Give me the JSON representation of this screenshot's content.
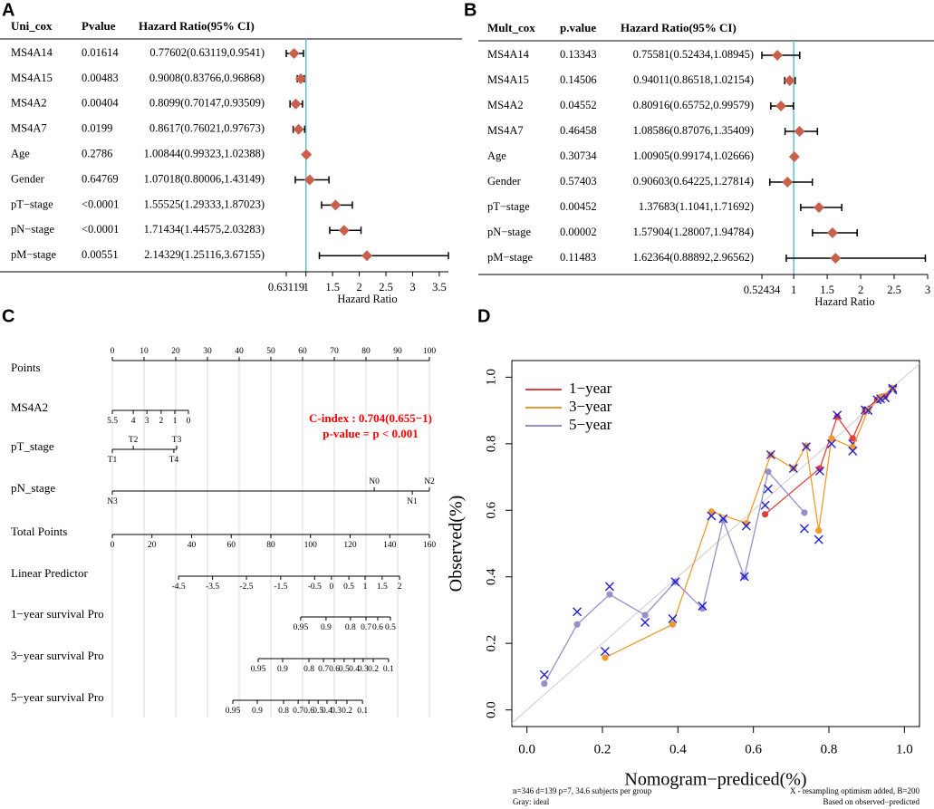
{
  "chart_data": [
    {
      "type": "forest",
      "panel": "A",
      "columns": [
        "Uni_cox",
        "Pvalue",
        "Hazard Ratio(95% CI)"
      ],
      "categories": [
        "MS4A14",
        "MS4A15",
        "MS4A2",
        "MS4A7",
        "Age",
        "Gender",
        "pT−stage",
        "pN−stage",
        "pM−stage"
      ],
      "pvalues": [
        "0.01614",
        "0.00483",
        "0.00404",
        "0.0199",
        "0.2786",
        "0.64769",
        "<0.0001",
        "<0.0001",
        "0.00551"
      ],
      "values": [
        0.77602,
        0.9008,
        0.8099,
        0.8617,
        1.00844,
        1.07018,
        1.55525,
        1.71434,
        2.14329
      ],
      "lower": [
        0.63119,
        0.83766,
        0.70147,
        0.76021,
        0.99323,
        0.80006,
        1.29333,
        1.44575,
        1.25116
      ],
      "upper": [
        0.9541,
        0.96868,
        0.93509,
        0.97673,
        1.02388,
        1.43149,
        1.87023,
        2.03283,
        3.67155
      ],
      "value_labels": [
        "0.77602(0.63119,0.9541)",
        "0.9008(0.83766,0.96868)",
        "0.8099(0.70147,0.93509)",
        "0.8617(0.76021,0.97673)",
        "1.00844(0.99323,1.02388)",
        "1.07018(0.80006,1.43149)",
        "1.55525(1.29333,1.87023)",
        "1.71434(1.44575,2.03283)",
        "2.14329(1.25116,3.67155)"
      ],
      "color": "#c9604c",
      "reference": 1,
      "reference_color": "#5cc3c8",
      "xlim": [
        0.63119,
        3.67155
      ],
      "xticks": [
        0.63119,
        1,
        1.5,
        2,
        2.5,
        3,
        3.5
      ],
      "xlabel": "Hazard Ratio"
    },
    {
      "type": "forest",
      "panel": "B",
      "columns": [
        "Mult_cox",
        "p.value",
        "Hazard Ratio(95% CI)"
      ],
      "categories": [
        "MS4A14",
        "MS4A15",
        "MS4A2",
        "MS4A7",
        "Age",
        "Gender",
        "pT−stage",
        "pN−stage",
        "pM−stage"
      ],
      "pvalues": [
        "0.13343",
        "0.14506",
        "0.04552",
        "0.46458",
        "0.30734",
        "0.57403",
        "0.00452",
        "0.00002",
        "0.11483"
      ],
      "values": [
        0.75581,
        0.94011,
        0.80916,
        1.08586,
        1.00905,
        0.90603,
        1.37683,
        1.57904,
        1.62364
      ],
      "lower": [
        0.52434,
        0.86518,
        0.65752,
        0.87076,
        0.99174,
        0.64225,
        1.1041,
        1.28007,
        0.88892
      ],
      "upper": [
        1.08945,
        1.02154,
        0.99579,
        1.35409,
        1.02666,
        1.27814,
        1.71692,
        1.94784,
        2.96562
      ],
      "value_labels": [
        "0.75581(0.52434,1.08945)",
        "0.94011(0.86518,1.02154)",
        "0.80916(0.65752,0.99579)",
        "1.08586(0.87076,1.35409)",
        "1.00905(0.99174,1.02666)",
        "0.90603(0.64225,1.27814)",
        "1.37683(1.1041,1.71692)",
        "1.57904(1.28007,1.94784)",
        "1.62364(0.88892,2.96562)"
      ],
      "color": "#c9604c",
      "reference": 1,
      "reference_color": "#5cc3c8",
      "xlim": [
        0.52434,
        3
      ],
      "xticks": [
        0.52434,
        1,
        1.5,
        2,
        2.5,
        3
      ],
      "xlabel": "Hazard Ratio"
    },
    {
      "type": "nomogram",
      "panel": "C",
      "xlim": [
        0,
        100
      ],
      "grid": true,
      "rows": [
        {
          "name": "Points",
          "ticks": [
            0,
            10,
            20,
            30,
            40,
            50,
            60,
            70,
            80,
            90,
            100
          ],
          "positions": [
            0,
            10,
            20,
            30,
            40,
            50,
            60,
            70,
            80,
            90,
            100
          ]
        },
        {
          "name": "MS4A2",
          "ticks": [
            5.5,
            4,
            3,
            2,
            1,
            0
          ],
          "positions": [
            0,
            6.6,
            10.9,
            15.4,
            19.7,
            24
          ]
        },
        {
          "name": "pT_stage",
          "ticks": [
            "T1",
            "T2",
            "T3",
            "T4"
          ],
          "positions": [
            0,
            6.6,
            20.3,
            19.4
          ],
          "above": [
            false,
            true,
            true,
            false
          ]
        },
        {
          "name": "pN_stage",
          "ticks": [
            "N3",
            "N0",
            "N1",
            "N2"
          ],
          "positions": [
            0,
            82.6,
            94.6,
            100
          ],
          "above": [
            false,
            true,
            false,
            true
          ]
        },
        {
          "name": "Total Points",
          "ticks": [
            0,
            20,
            40,
            60,
            80,
            100,
            120,
            140,
            160
          ],
          "positions": [
            0,
            12.5,
            25,
            37.5,
            50,
            62.5,
            75,
            87.5,
            100
          ]
        },
        {
          "name": "Linear Predictor",
          "ticks": [
            -4.5,
            -3.5,
            -2.5,
            -1.5,
            -0.5,
            0,
            0.5,
            1,
            1.5,
            2
          ],
          "positions": [
            20.9,
            31.6,
            42.3,
            53.1,
            63.8,
            69.1,
            74.6,
            79.7,
            85.1,
            90.6
          ]
        },
        {
          "name": "1−year survival Pro",
          "ticks": [
            0.95,
            0.9,
            0.8,
            0.7,
            0.6,
            0.5
          ],
          "positions": [
            59.4,
            67.4,
            75.1,
            80,
            83.7,
            87.7
          ]
        },
        {
          "name": "3−year survival Pro",
          "ticks": [
            0.95,
            0.9,
            0.8,
            0.7,
            0.6,
            0.5,
            0.4,
            0.3,
            0.2,
            0.1
          ],
          "positions": [
            46,
            53.7,
            62,
            66.6,
            70,
            73.1,
            76.3,
            79.1,
            82.3,
            87.1
          ]
        },
        {
          "name": "5−year survival Pro",
          "ticks": [
            0.95,
            0.9,
            0.8,
            0.7,
            0.6,
            0.5,
            0.4,
            0.3,
            0.2,
            0.1
          ],
          "positions": [
            38,
            45.7,
            54,
            58.6,
            62,
            64.9,
            67.7,
            70.6,
            74,
            78.9
          ]
        }
      ],
      "annotations": [
        "C-index : 0.704(0.655−1)",
        "p-value = p < 0.001"
      ],
      "annotation_color": "#ff0000"
    },
    {
      "type": "calibration",
      "panel": "D",
      "xlabel": "Nomogram−prediced(%)",
      "ylabel": "Observed(%)",
      "xlim": [
        -0.04,
        1.04
      ],
      "ylim": [
        -0.05,
        1.05
      ],
      "xticks": [
        {
          "value": 0,
          "label": "0.0"
        },
        0.2,
        0.4,
        0.6,
        0.8,
        {
          "value": 1,
          "label": "1.0"
        }
      ],
      "yticks": [
        {
          "value": 0,
          "label": "0.0"
        },
        0.2,
        0.4,
        0.6,
        0.8,
        {
          "value": 1,
          "label": "1.0"
        }
      ],
      "legend": "top-left",
      "corrected_color": "#1f1fd6",
      "ideal_color": "#cccccc",
      "series": [
        {
          "name": "1−year",
          "color": "#e2413a",
          "x": [
            0.631,
            0.776,
            0.822,
            0.863,
            0.896,
            0.928,
            0.949,
            0.969
          ],
          "values": [
            0.588,
            0.726,
            0.881,
            0.816,
            0.902,
            0.932,
            0.943,
            0.967
          ],
          "corrected": [
            0.615,
            0.718,
            0.886,
            0.8,
            0.902,
            0.932,
            0.938,
            0.962
          ]
        },
        {
          "name": "3−year",
          "color": "#ef9a2e",
          "x": [
            0.207,
            0.386,
            0.489,
            0.581,
            0.646,
            0.706,
            0.74,
            0.773,
            0.807,
            0.863,
            0.904,
            0.937,
            0.969
          ],
          "values": [
            0.157,
            0.257,
            0.596,
            0.561,
            0.767,
            0.726,
            0.794,
            0.539,
            0.816,
            0.789,
            0.902,
            0.94,
            0.967
          ],
          "corrected": [
            0.176,
            0.274,
            0.583,
            0.553,
            0.767,
            0.726,
            0.791,
            0.512,
            0.8,
            0.778,
            0.9,
            0.935,
            0.967
          ]
        },
        {
          "name": "5−year",
          "color": "#998fc7",
          "x": [
            0.046,
            0.133,
            0.219,
            0.313,
            0.393,
            0.465,
            0.52,
            0.576,
            0.639,
            0.735
          ],
          "values": [
            0.079,
            0.257,
            0.347,
            0.285,
            0.385,
            0.305,
            0.57,
            0.4,
            0.716,
            0.593
          ],
          "corrected": [
            0.106,
            0.295,
            0.371,
            0.263,
            0.385,
            0.312,
            0.575,
            0.401,
            0.664,
            0.545
          ]
        }
      ],
      "notes": [
        "n=346 d=139 p=7, 34.6 subjects per group",
        "Gray: ideal",
        "X - resampling optimism added, B=200",
        "Based on observed−predicted"
      ]
    }
  ]
}
